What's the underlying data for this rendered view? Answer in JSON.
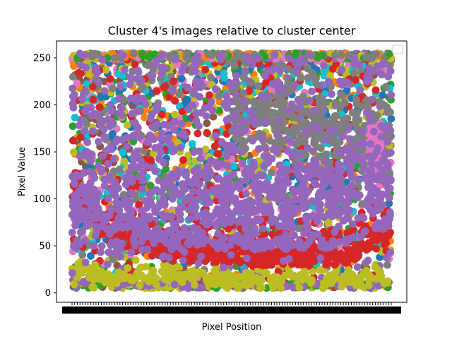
{
  "chart_data": {
    "type": "scatter",
    "title": "Cluster 4's images relative to cluster center",
    "xlabel": "Pixel Position",
    "ylabel": "Pixel Value",
    "ylim": [
      -10,
      268
    ],
    "yticks": [
      0,
      50,
      100,
      150,
      200,
      250
    ],
    "xticks_note": "dense overlapping tick labels rendered as a solid band",
    "grid": false,
    "legend": {
      "placement": "top-right",
      "entries": []
    },
    "colors": [
      "#1f77b4",
      "#ff7f0e",
      "#2ca02c",
      "#d62728",
      "#9467bd",
      "#8c564b",
      "#e377c2",
      "#7f7f7f",
      "#bcbd22",
      "#17becf"
    ],
    "series_profile": {
      "red_band": [
        [
          0,
          105
        ],
        [
          0.1,
          60
        ],
        [
          0.3,
          40
        ],
        [
          0.6,
          35
        ],
        [
          0.85,
          35
        ],
        [
          1,
          60
        ]
      ],
      "yellow_band": [
        [
          0,
          22
        ],
        [
          0.2,
          18
        ],
        [
          0.5,
          15
        ],
        [
          1,
          15
        ]
      ],
      "purple_band": [
        [
          0,
          80
        ],
        [
          0.3,
          85
        ],
        [
          0.6,
          90
        ],
        [
          0.9,
          120
        ],
        [
          1,
          120
        ]
      ],
      "gray_band": [
        [
          0.55,
          190
        ],
        [
          0.75,
          180
        ],
        [
          0.9,
          170
        ],
        [
          1,
          160
        ]
      ]
    }
  }
}
